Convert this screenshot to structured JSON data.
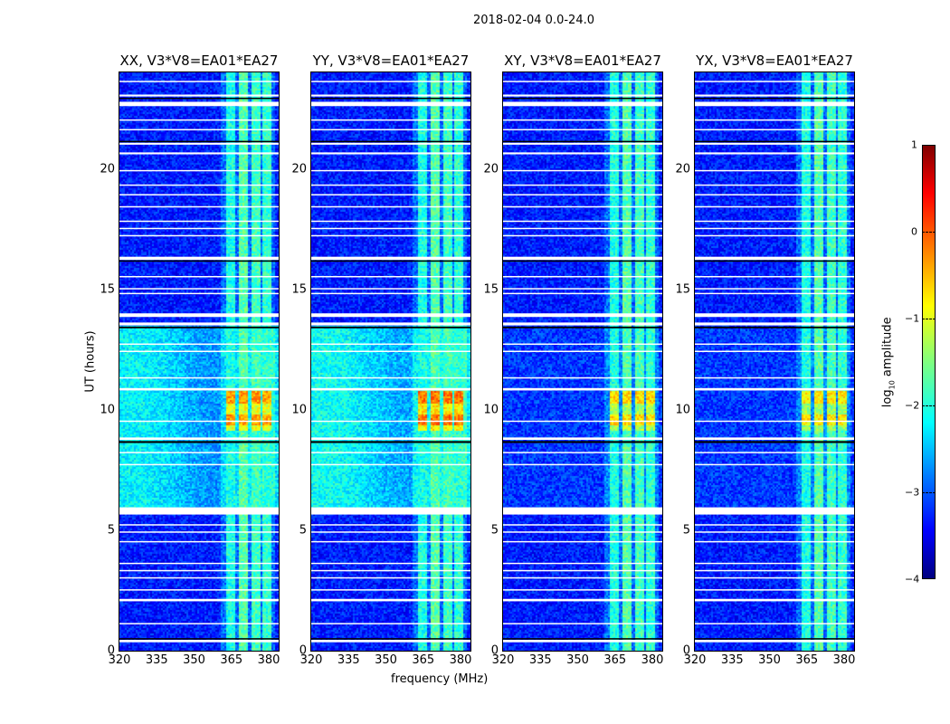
{
  "suptitle": "2018-02-04 0.0-24.0",
  "chart_data": {
    "type": "heatmap",
    "xlabel": "frequency (MHz)",
    "ylabel": "UT (hours)",
    "xlim": [
      320,
      384
    ],
    "ylim": [
      0,
      24
    ],
    "xticks": [
      "320",
      "335",
      "350",
      "365",
      "380"
    ],
    "xtick_values": [
      320,
      335,
      350,
      365,
      380
    ],
    "yticks": [
      "0",
      "5",
      "10",
      "15",
      "20"
    ],
    "ytick_values": [
      0,
      5,
      10,
      15,
      20
    ],
    "colorbar": {
      "label_main": "log",
      "label_sub": "10",
      "label_rest": " amplitude",
      "range": [
        -4,
        1
      ],
      "ticks": [
        "1",
        "0",
        "−1",
        "−2",
        "−3",
        "−4"
      ],
      "tick_values": [
        1,
        0,
        -1,
        -2,
        -3,
        -4
      ],
      "colormap": "jet"
    },
    "panels": [
      {
        "title": "XX, V3*V8=EA01*EA27",
        "mid_level": -2.4,
        "burst_level": -0.4
      },
      {
        "title": "YY, V3*V8=EA01*EA27",
        "mid_level": -2.3,
        "burst_level": -0.2
      },
      {
        "title": "XY, V3*V8=EA01*EA27",
        "mid_level": -3.1,
        "burst_level": -0.7
      },
      {
        "title": "YX, V3*V8=EA01*EA27",
        "mid_level": -3.1,
        "burst_level": -0.8
      }
    ],
    "base_level": -3.25,
    "mid_segment_hours": [
      5.9,
      13.5
    ],
    "rfi_bands_mhz": [
      [
        362.5,
        366.5,
        -2.0
      ],
      [
        367.5,
        371,
        -1.7
      ],
      [
        372.5,
        376,
        -1.8
      ],
      [
        377,
        380.5,
        -1.9
      ]
    ],
    "burst_hours": [
      9.2,
      10.8
    ],
    "flagged_hours": [
      [
        0.35,
        0.45
      ],
      [
        1.1,
        1.15
      ],
      [
        2.05,
        2.15
      ],
      [
        2.5,
        2.55
      ],
      [
        3.0,
        3.05
      ],
      [
        3.3,
        3.35
      ],
      [
        3.6,
        3.65
      ],
      [
        4.5,
        4.55
      ],
      [
        4.9,
        4.95
      ],
      [
        5.2,
        5.25
      ],
      [
        5.65,
        5.95
      ],
      [
        7.7,
        7.75
      ],
      [
        8.2,
        8.25
      ],
      [
        8.75,
        8.85
      ],
      [
        9.5,
        9.55
      ],
      [
        10.8,
        10.9
      ],
      [
        11.3,
        11.35
      ],
      [
        12.4,
        12.45
      ],
      [
        12.7,
        12.75
      ],
      [
        13.5,
        13.62
      ],
      [
        13.85,
        14.0
      ],
      [
        14.8,
        14.85
      ],
      [
        15.0,
        15.05
      ],
      [
        15.5,
        15.55
      ],
      [
        16.22,
        16.35
      ],
      [
        17.2,
        17.25
      ],
      [
        17.5,
        17.55
      ],
      [
        17.8,
        17.85
      ],
      [
        18.4,
        18.45
      ],
      [
        18.9,
        18.95
      ],
      [
        19.3,
        19.35
      ],
      [
        19.9,
        19.95
      ],
      [
        20.6,
        20.68
      ],
      [
        21.0,
        21.08
      ],
      [
        21.6,
        21.65
      ],
      [
        22.0,
        22.05
      ],
      [
        22.6,
        22.78
      ],
      [
        23.0,
        23.08
      ],
      [
        23.6,
        23.65
      ]
    ],
    "dark_hours": [
      [
        0.48,
        0.52
      ],
      [
        8.62,
        8.7
      ],
      [
        13.38,
        13.45
      ],
      [
        16.15,
        16.2
      ],
      [
        21.1,
        21.16
      ],
      [
        22.9,
        22.95
      ]
    ]
  }
}
